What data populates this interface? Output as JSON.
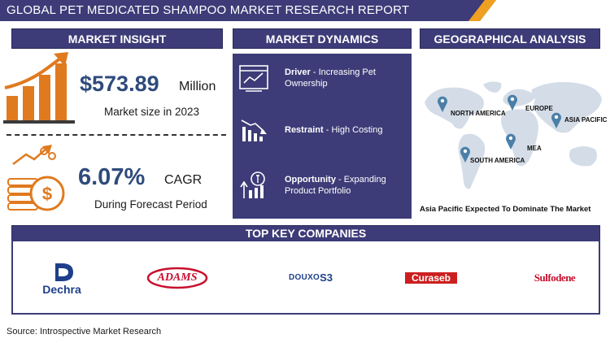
{
  "report_title": "GLOBAL PET MEDICATED SHAMPOO MARKET RESEARCH REPORT",
  "sections": {
    "insight": "MARKET INSIGHT",
    "dynamics": "MARKET DYNAMICS",
    "geo": "GEOGRAPHICAL ANALYSIS",
    "companies": "TOP KEY COMPANIES"
  },
  "insight": {
    "market_size_value": "$573.89",
    "market_size_unit": "Million",
    "market_size_label": "Market size in 2023",
    "cagr_value": "6.07%",
    "cagr_unit": "CAGR",
    "cagr_label": "During Forecast Period"
  },
  "dynamics": [
    {
      "key": "Driver",
      "text": " - Increasing Pet Ownership"
    },
    {
      "key": "Restraint",
      "text": " - High Costing"
    },
    {
      "key": "Opportunity",
      "text": " - Expanding Product Portfolio"
    }
  ],
  "geo": {
    "regions": [
      "NORTH AMERICA",
      "EUROPE",
      "ASIA PACIFIC",
      "MEA",
      "SOUTH AMERICA"
    ],
    "footnote": "Asia Pacific Expected To Dominate The Market"
  },
  "companies": [
    "Dechra",
    "ADAMS",
    "DOUXO",
    "S3",
    "Curaseb",
    "Sulfodene"
  ],
  "source": "Source: Introspective Market Research",
  "colors": {
    "navy": "#3d3c78",
    "orange": "#e07a1f",
    "pin": "#4a7fa7",
    "map": "#d3dce7"
  }
}
